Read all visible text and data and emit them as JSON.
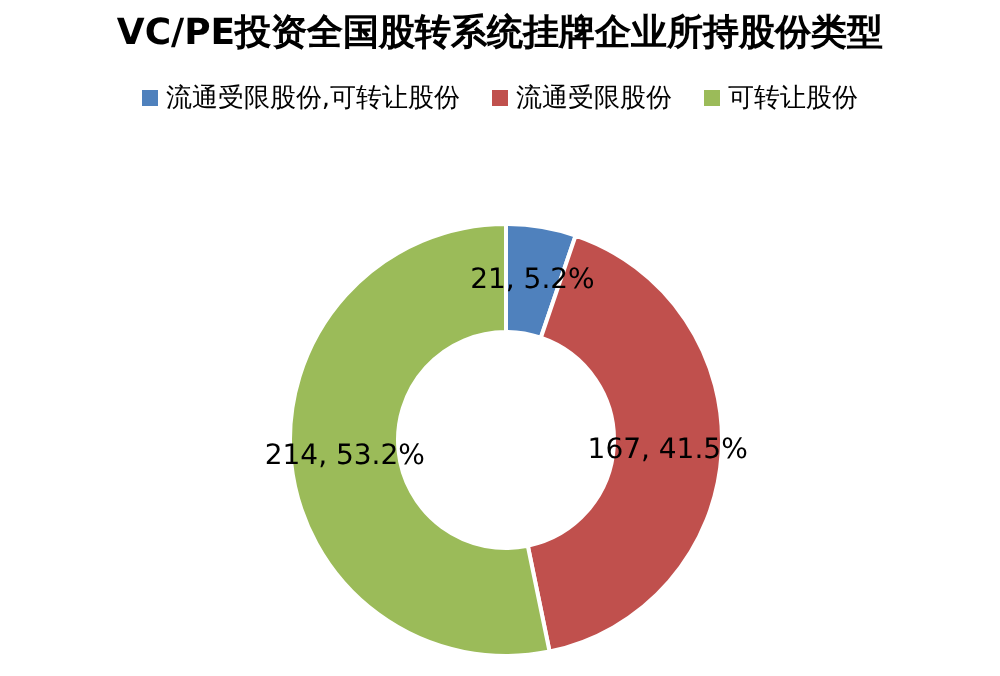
{
  "chart_data": {
    "type": "donut",
    "title": "VC/PE投资全国股转系统挂牌企业所持股份类型",
    "categories": [
      "流通受限股份,可转让股份",
      "流通受限股份",
      "可转让股份"
    ],
    "values": [
      21,
      167,
      214
    ],
    "colors": [
      "#4f81bd",
      "#c0504d",
      "#9bbb59"
    ],
    "value_labels": [
      "21, 5.2%",
      "167, 41.5%",
      "214, 53.2%"
    ],
    "legend": "top"
  }
}
